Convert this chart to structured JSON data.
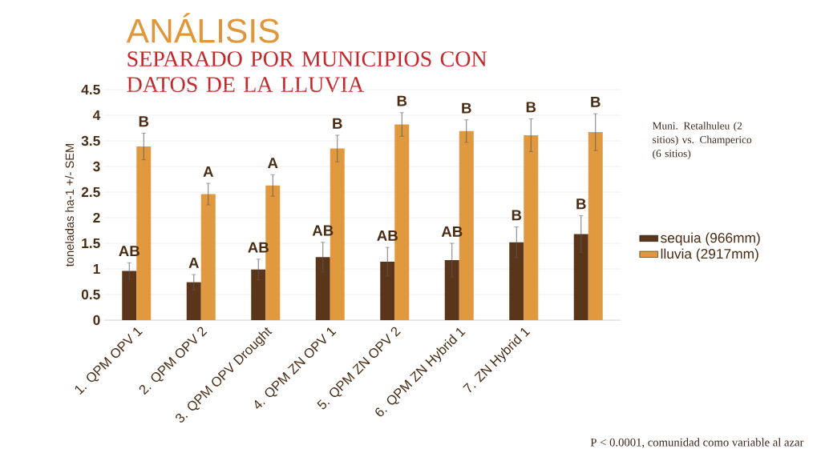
{
  "chart_data": {
    "type": "bar",
    "title": "ANÁLISIS",
    "subtitle": "SEPARADO POR MUNICIPIOS CON DATOS DE LA LLUVIA",
    "ylabel": "toneladas ha-1 +/- SEM",
    "categories": [
      "1. QPM OPV 1",
      "2. QPM OPV 2",
      "3. QPM OPV Drought",
      "4. QPM ZN OPV 1",
      "5. QPM ZN OPV 2",
      "6. QPM ZN Hybrid 1",
      "7. ZN Hybrid 1",
      null
    ],
    "series": [
      {
        "name": "sequia (966mm)",
        "color": "#5a3519",
        "values": [
          0.96,
          0.74,
          0.99,
          1.23,
          1.14,
          1.17,
          1.52,
          1.68
        ],
        "errors": [
          0.16,
          0.15,
          0.2,
          0.29,
          0.28,
          0.33,
          0.3,
          0.36
        ],
        "value_labels": [
          "AB",
          "A",
          "AB",
          "AB",
          "AB",
          "AB",
          "B",
          "B"
        ]
      },
      {
        "name": "lluvia (2917mm)",
        "color": "#e0993e",
        "values": [
          3.39,
          2.46,
          2.63,
          3.35,
          3.82,
          3.69,
          3.61,
          3.67
        ],
        "errors": [
          0.26,
          0.21,
          0.21,
          0.26,
          0.23,
          0.22,
          0.32,
          0.36
        ],
        "value_labels": [
          "B",
          "A",
          "A",
          "B",
          "B",
          "B",
          "B",
          "B"
        ]
      }
    ],
    "ylim": [
      0,
      4.5
    ],
    "yticks": [
      0,
      0.5,
      1,
      1.5,
      2,
      2.5,
      3,
      3.5,
      4,
      4.5
    ],
    "grid": "y",
    "legend": "right",
    "annotations": [
      "Muni. Retalhuleu (2 sitios) vs. Champerico (6 sitios)",
      "P < 0.0001, comunidad como variable al azar"
    ]
  }
}
